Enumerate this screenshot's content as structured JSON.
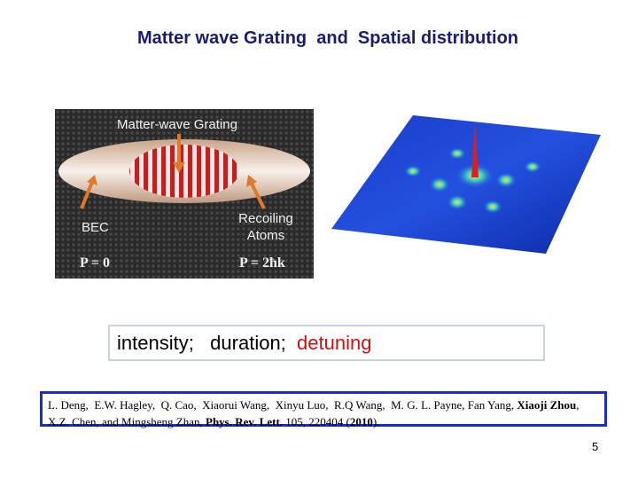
{
  "title": "Matter wave Grating  and  Spatial distribution",
  "figure_left": {
    "label": "Matter-wave Grating",
    "left_label": "BEC",
    "right_label": [
      "Recoiling",
      "Atoms"
    ],
    "momentum_left": "P = 0",
    "momentum_right": "P = 2ħk"
  },
  "parameters": [
    "intensity;",
    "duration;",
    "detuning"
  ],
  "reference": {
    "segments": [
      "L. Deng,  E.W. Hagley,  Q. Cao,  Xiaorui Wang,  Xinyu Luo,  R.Q Wang,  M. G. L. Payne, Fan Yang, ",
      "Xiaoji Zhou",
      ", X.Z. Chen, and Mingsheng Zhan, ",
      "Phys. Rev. Lett.",
      " 105, 220404 (",
      "2010",
      ")."
    ]
  },
  "page_number": "5"
}
